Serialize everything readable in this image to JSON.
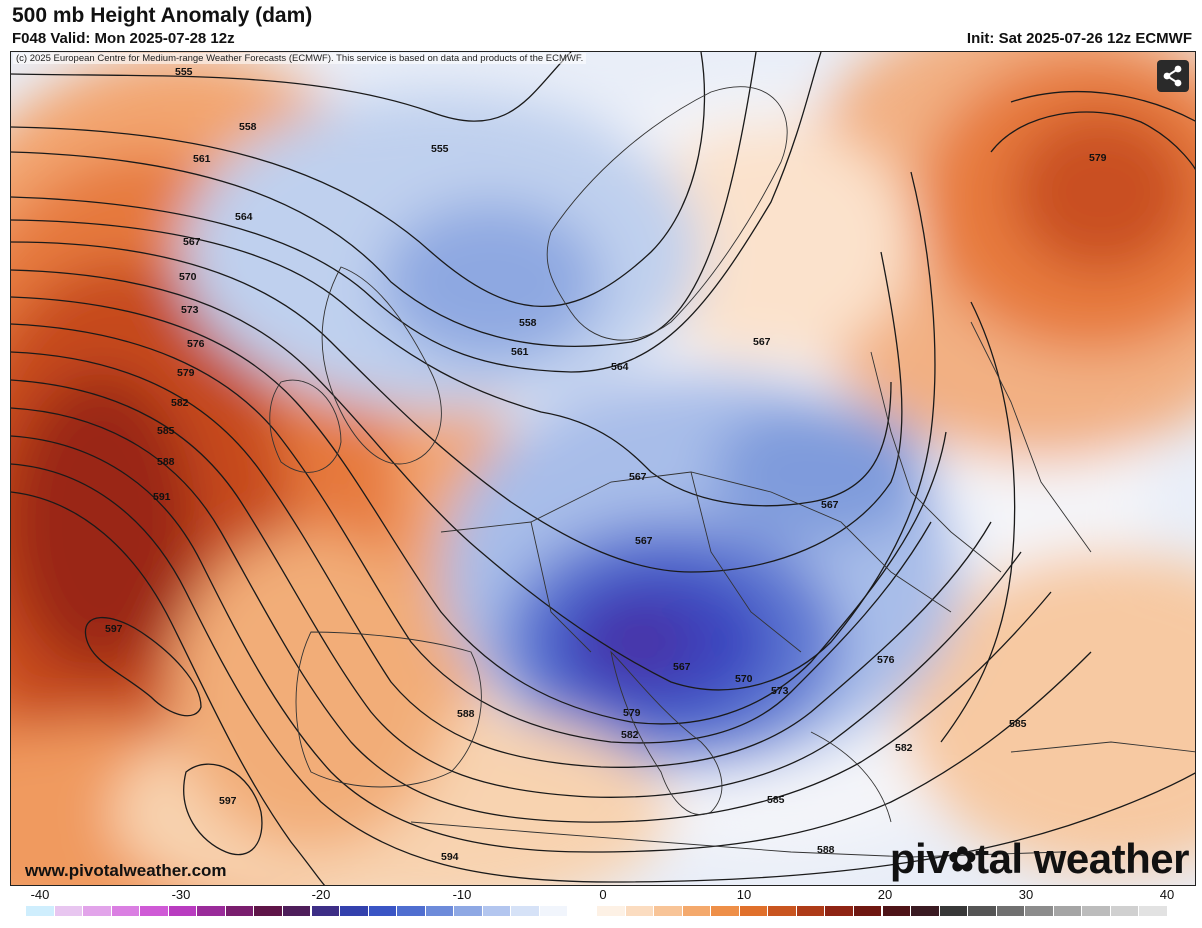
{
  "header": {
    "title": "500 mb Height Anomaly (dam)",
    "valid": "F048 Valid: Mon 2025-07-28 12z",
    "init": "Init: Sat 2025-07-26 12z ECMWF"
  },
  "map": {
    "copyright": "(c) 2025 European Centre for Medium-range Weather Forecasts (ECMWF). This service is based on data and products of the ECMWF.",
    "site_url": "www.pivotalweather.com",
    "logo_left": "piv",
    "logo_right": "tal weather",
    "share_icon": "share-icon",
    "contour_labels": [
      {
        "text": "555"
      },
      {
        "text": "555"
      },
      {
        "text": "558"
      },
      {
        "text": "558"
      },
      {
        "text": "561"
      },
      {
        "text": "561"
      },
      {
        "text": "564"
      },
      {
        "text": "564"
      },
      {
        "text": "567"
      },
      {
        "text": "567"
      },
      {
        "text": "567"
      },
      {
        "text": "567"
      },
      {
        "text": "567"
      },
      {
        "text": "567"
      },
      {
        "text": "570"
      },
      {
        "text": "570"
      },
      {
        "text": "573"
      },
      {
        "text": "573"
      },
      {
        "text": "576"
      },
      {
        "text": "576"
      },
      {
        "text": "579"
      },
      {
        "text": "579"
      },
      {
        "text": "579"
      },
      {
        "text": "582"
      },
      {
        "text": "582"
      },
      {
        "text": "582"
      },
      {
        "text": "585"
      },
      {
        "text": "585"
      },
      {
        "text": "585"
      },
      {
        "text": "588"
      },
      {
        "text": "588"
      },
      {
        "text": "588"
      },
      {
        "text": "591"
      },
      {
        "text": "594"
      },
      {
        "text": "597"
      },
      {
        "text": "597"
      }
    ]
  },
  "colorbar": {
    "ticks": [
      "-40",
      "-30",
      "-20",
      "-10",
      "0",
      "10",
      "20",
      "30",
      "40"
    ],
    "colors": [
      "#cfeefd",
      "#e8c6f0",
      "#e2a4ea",
      "#da7fe2",
      "#cf5ad6",
      "#b93cc0",
      "#9a2b9a",
      "#7a1e6e",
      "#5f1548",
      "#4e1e5a",
      "#3d2e86",
      "#3341ad",
      "#3a55c5",
      "#4f6ed0",
      "#6d8bda",
      "#8ea8e4",
      "#b3c6ef",
      "#d6e2f7",
      "#f1f5fc",
      "#ffffff",
      "#fdf1e5",
      "#fbdcc0",
      "#f8c497",
      "#f4a96c",
      "#ee8f48",
      "#e0702b",
      "#c95520",
      "#ae3b18",
      "#8f2414",
      "#6f1711",
      "#4e1418",
      "#3a1a22",
      "#383838",
      "#555555",
      "#707070",
      "#8c8c8c",
      "#a5a5a5",
      "#bcbcbc",
      "#d0d0d0",
      "#e2e2e2"
    ]
  }
}
